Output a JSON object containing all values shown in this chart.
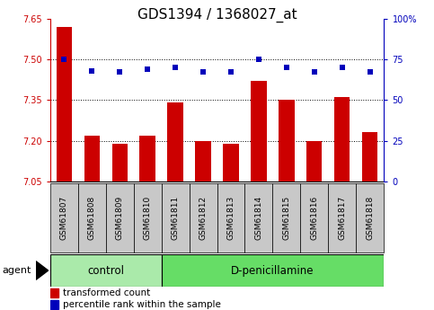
{
  "title": "GDS1394 / 1368027_at",
  "samples": [
    "GSM61807",
    "GSM61808",
    "GSM61809",
    "GSM61810",
    "GSM61811",
    "GSM61812",
    "GSM61813",
    "GSM61814",
    "GSM61815",
    "GSM61816",
    "GSM61817",
    "GSM61818"
  ],
  "bar_values": [
    7.62,
    7.22,
    7.19,
    7.22,
    7.34,
    7.2,
    7.19,
    7.42,
    7.35,
    7.2,
    7.36,
    7.23
  ],
  "percentile_values": [
    75,
    68,
    67,
    69,
    70,
    67,
    67,
    75,
    70,
    67,
    70,
    67
  ],
  "y_min": 7.05,
  "y_max": 7.65,
  "y_ticks": [
    7.05,
    7.2,
    7.35,
    7.5,
    7.65
  ],
  "y_right_ticks": [
    0,
    25,
    50,
    75,
    100
  ],
  "bar_color": "#cc0000",
  "percentile_color": "#0000bb",
  "plot_bg": "#ffffff",
  "control_samples": 4,
  "control_label": "control",
  "treatment_label": "D-penicillamine",
  "agent_label": "agent",
  "legend_bar": "transformed count",
  "legend_pct": "percentile rank within the sample",
  "control_bg": "#aaeaaa",
  "treatment_bg": "#66dd66",
  "xtick_bg": "#c8c8c8",
  "title_fontsize": 11,
  "tick_fontsize": 7,
  "label_fontsize": 8.5
}
